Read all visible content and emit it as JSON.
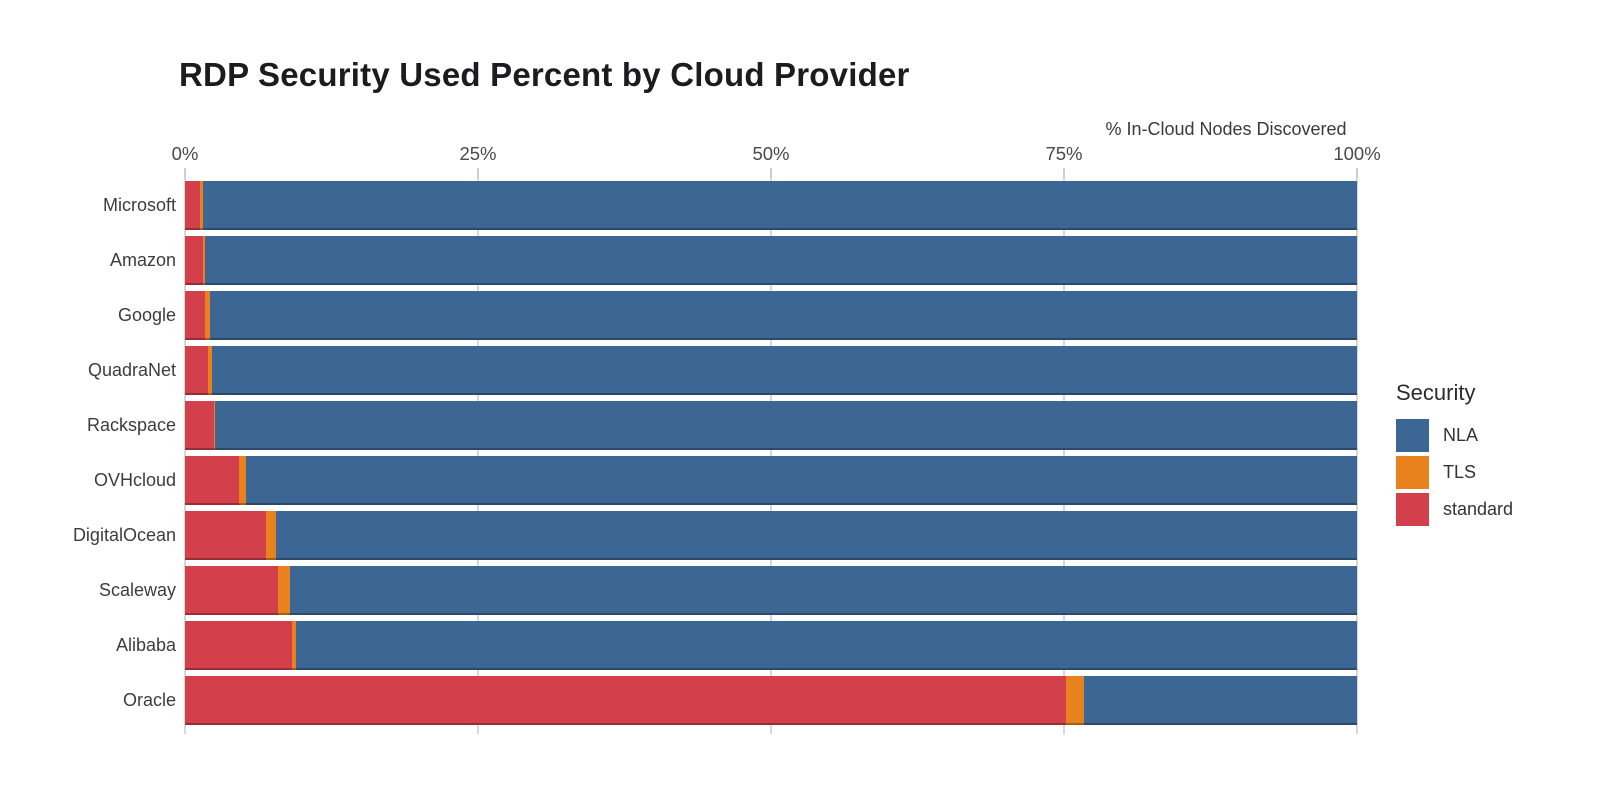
{
  "chart": {
    "title": "RDP Security Used Percent by Cloud Provider",
    "x_axis_label": "% In-Cloud Nodes Discovered"
  },
  "legend": {
    "title": "Security",
    "entries": [
      {
        "label": "NLA",
        "color": "#3c6795"
      },
      {
        "label": "TLS",
        "color": "#e8821d"
      },
      {
        "label": "standard",
        "color": "#d43f4c"
      }
    ]
  },
  "chart_data": {
    "type": "bar",
    "orientation": "horizontal",
    "stacked": true,
    "title": "RDP Security Used Percent by Cloud Provider",
    "xlabel": "% In-Cloud Nodes Discovered",
    "ylabel": "",
    "xlim": [
      0,
      100
    ],
    "x_tick_labels": [
      "0%",
      "25%",
      "50%",
      "75%",
      "100%"
    ],
    "x_tick_values": [
      0,
      25,
      50,
      75,
      100
    ],
    "grid": "vertical-light",
    "legend_title": "Security",
    "legend_position": "right",
    "legend_order": [
      "NLA",
      "TLS",
      "standard"
    ],
    "stack_order": [
      "standard",
      "TLS",
      "NLA"
    ],
    "categories": [
      "Microsoft",
      "Amazon",
      "Google",
      "QuadraNet",
      "Rackspace",
      "OVHcloud",
      "DigitalOcean",
      "Scaleway",
      "Alibaba",
      "Oracle"
    ],
    "series": [
      {
        "name": "standard",
        "color": "#d43f4c",
        "values": [
          1.3,
          1.5,
          1.7,
          2.0,
          2.5,
          4.6,
          6.9,
          7.9,
          9.1,
          75.2
        ]
      },
      {
        "name": "TLS",
        "color": "#e8821d",
        "values": [
          0.2,
          0.2,
          0.4,
          0.3,
          0.1,
          0.6,
          0.9,
          1.1,
          0.4,
          1.5
        ]
      },
      {
        "name": "NLA",
        "color": "#3c6795",
        "values": [
          98.5,
          98.3,
          97.9,
          97.7,
          97.4,
          94.8,
          92.2,
          91.0,
          90.5,
          23.3
        ]
      }
    ]
  }
}
